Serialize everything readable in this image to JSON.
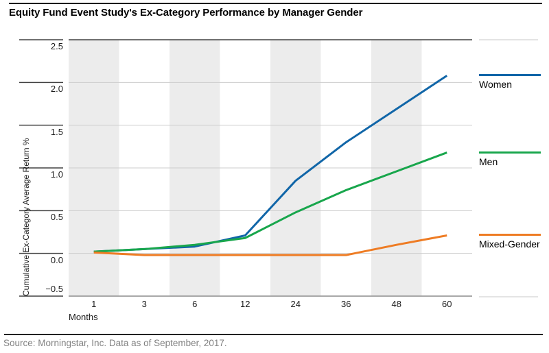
{
  "header": {
    "title": "Equity Fund Event Study's Ex-Category Performance by Manager Gender"
  },
  "footer": {
    "source": "Source: Morningstar, Inc. Data as of September, 2017."
  },
  "chart_data": {
    "type": "line",
    "title": "Equity Fund Event Study's Ex-Category Performance by Manager Gender",
    "xlabel": "Months",
    "ylabel": "Cumulative Ex-Category Average Return %",
    "categories": [
      1,
      3,
      6,
      12,
      24,
      36,
      48,
      60
    ],
    "x_tick_labels": [
      "1",
      "3",
      "6",
      "12",
      "24",
      "36",
      "48",
      "60"
    ],
    "y_ticks": [
      2.5,
      2.0,
      1.5,
      1.0,
      0.5,
      0.0,
      -0.5
    ],
    "y_tick_labels": [
      "2.5",
      "2.0",
      "1.5",
      "1.0",
      "0.5",
      "0.0",
      "−0.5"
    ],
    "ylim": [
      -0.5,
      2.5
    ],
    "grid": "horizontal-light-gray",
    "banded_categories": [
      1,
      6,
      24,
      48
    ],
    "legend_position": "right-aligned-to-line-ends",
    "series": [
      {
        "name": "Women",
        "color": "#1166a8",
        "values": [
          0.02,
          0.05,
          0.08,
          0.21,
          0.85,
          1.3,
          1.69,
          2.08
        ]
      },
      {
        "name": "Men",
        "color": "#18a64c",
        "values": [
          0.02,
          0.05,
          0.1,
          0.18,
          0.48,
          0.74,
          0.96,
          1.18
        ]
      },
      {
        "name": "Mixed-Gender",
        "color": "#ee7c24",
        "values": [
          0.01,
          -0.02,
          -0.02,
          -0.02,
          -0.02,
          -0.02,
          0.1,
          0.21
        ]
      }
    ]
  },
  "colors": {
    "band": "#ececec",
    "gridline": "#cccccc",
    "dark_line": "#404040",
    "axis_line": "#8c8c8c",
    "legend_rule": "#c9c9c9"
  }
}
